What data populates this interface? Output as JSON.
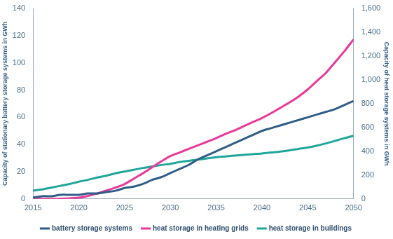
{
  "chart_data": {
    "type": "line",
    "x": [
      2015,
      2016,
      2017,
      2018,
      2019,
      2020,
      2021,
      2022,
      2023,
      2024,
      2025,
      2026,
      2027,
      2028,
      2029,
      2030,
      2031,
      2032,
      2033,
      2034,
      2035,
      2036,
      2037,
      2038,
      2039,
      2040,
      2041,
      2042,
      2043,
      2044,
      2045,
      2046,
      2047,
      2048,
      2049,
      2050
    ],
    "xlim": [
      2015,
      2050
    ],
    "xticks": [
      2015,
      2020,
      2025,
      2030,
      2035,
      2040,
      2045,
      2050
    ],
    "y_label": "Capacity of stationary battery storage systems in GWh",
    "ylim": [
      0,
      140
    ],
    "yticks": [
      0,
      20,
      40,
      60,
      80,
      100,
      120,
      140
    ],
    "y2_label": "Capacity of heat storage systems in GWh",
    "y2lim": [
      0,
      1600
    ],
    "y2ticks": [
      0,
      200,
      400,
      600,
      800,
      {
        "value": 1000,
        "label": "1,000"
      },
      {
        "value": 1200,
        "label": "1,200"
      },
      {
        "value": 1400,
        "label": "1,400"
      },
      {
        "value": 1600,
        "label": "1,600"
      }
    ],
    "grid": false,
    "legend": "bottom",
    "series": [
      {
        "name": "battery storage systems",
        "color": "#2f5d87",
        "values": [
          1,
          2,
          2,
          3,
          3,
          3,
          4,
          4,
          5,
          6,
          8,
          9,
          11,
          14,
          16,
          19,
          22,
          25,
          29,
          32,
          35,
          38,
          41,
          44,
          47,
          50,
          52,
          54,
          56,
          58,
          60,
          62,
          64,
          66,
          69,
          72
        ]
      },
      {
        "name": "heat storage in heating grids",
        "color": "#e8399a",
        "axis": "y2",
        "values": [
          0,
          0,
          0,
          2,
          5,
          10,
          25,
          45,
          70,
          95,
          125,
          170,
          215,
          265,
          315,
          360,
          390,
          420,
          450,
          480,
          510,
          545,
          575,
          610,
          645,
          680,
          720,
          765,
          810,
          860,
          920,
          990,
          1060,
          1150,
          1240,
          1340
        ]
      },
      {
        "name": "heat storage in buildings",
        "color": "#1fa69a",
        "axis": "y2",
        "values": [
          70,
          80,
          95,
          110,
          125,
          145,
          160,
          180,
          195,
          215,
          230,
          245,
          260,
          272,
          285,
          295,
          310,
          320,
          330,
          340,
          350,
          357,
          364,
          370,
          376,
          382,
          390,
          398,
          408,
          420,
          432,
          448,
          466,
          488,
          510,
          530
        ]
      }
    ]
  }
}
